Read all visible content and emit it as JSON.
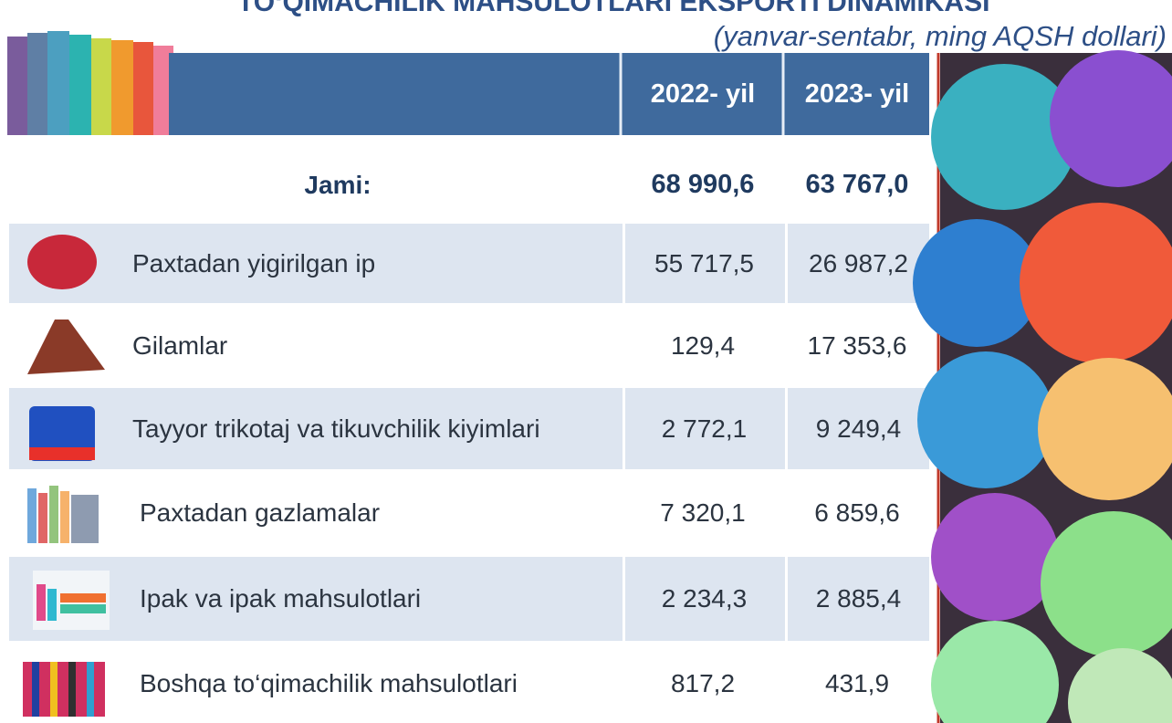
{
  "header": {
    "title": "TO‘QIMACHILIK MAHSULOTLARI EKSPORTI DINAMIKASI",
    "subtitle": "(yanvar-sentabr, ming AQSH dollari)"
  },
  "table": {
    "columns": [
      "2022- yil",
      "2023- yil"
    ],
    "total": {
      "label": "Jami:",
      "values": [
        "68 990,6",
        "63 767,0"
      ]
    },
    "rows": [
      {
        "label": "Paxtadan yigirilgan ip",
        "values": [
          "55 717,5",
          "26 987,2"
        ]
      },
      {
        "label": "Gilamlar",
        "values": [
          "129,4",
          "17 353,6"
        ]
      },
      {
        "label": "Tayyor trikotaj va tikuvchilik kiyimlari",
        "values": [
          "2 772,1",
          "9 249,4"
        ]
      },
      {
        "label": "Paxtadan gazlamalar",
        "values": [
          "7 320,1",
          "6 859,6"
        ]
      },
      {
        "label": "Ipak va ipak mahsulotlari",
        "values": [
          "2 234,3",
          "2 885,4"
        ]
      },
      {
        "label": "Boshqa to‘qimachilik mahsulotlari",
        "values": [
          "817,2",
          "431,9"
        ]
      }
    ]
  }
}
